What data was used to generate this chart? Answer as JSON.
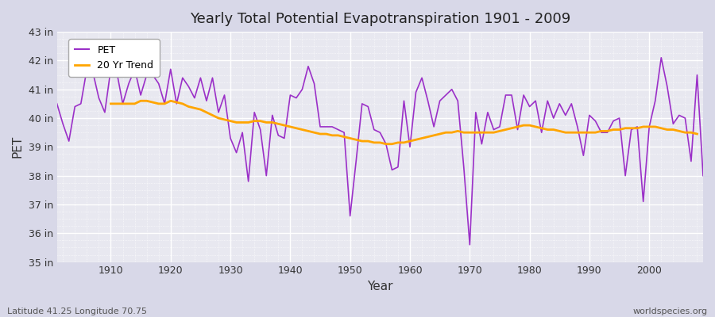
{
  "title": "Yearly Total Potential Evapotranspiration 1901 - 2009",
  "xlabel": "Year",
  "ylabel": "PET",
  "subtitle_left": "Latitude 41.25 Longitude 70.75",
  "subtitle_right": "worldspecies.org",
  "pet_color": "#9B30C8",
  "trend_color": "#FFA500",
  "fig_bg_color": "#D8D8E8",
  "plot_bg_color": "#E8E8F0",
  "ylim": [
    35,
    43
  ],
  "yticks": [
    35,
    36,
    37,
    38,
    39,
    40,
    41,
    42,
    43
  ],
  "years": [
    1901,
    1902,
    1903,
    1904,
    1905,
    1906,
    1907,
    1908,
    1909,
    1910,
    1911,
    1912,
    1913,
    1914,
    1915,
    1916,
    1917,
    1918,
    1919,
    1920,
    1921,
    1922,
    1923,
    1924,
    1925,
    1926,
    1927,
    1928,
    1929,
    1930,
    1931,
    1932,
    1933,
    1934,
    1935,
    1936,
    1937,
    1938,
    1939,
    1940,
    1941,
    1942,
    1943,
    1944,
    1945,
    1946,
    1947,
    1948,
    1949,
    1950,
    1951,
    1952,
    1953,
    1954,
    1955,
    1956,
    1957,
    1958,
    1959,
    1960,
    1961,
    1962,
    1963,
    1964,
    1965,
    1966,
    1967,
    1968,
    1969,
    1970,
    1971,
    1972,
    1973,
    1974,
    1975,
    1976,
    1977,
    1978,
    1979,
    1980,
    1981,
    1982,
    1983,
    1984,
    1985,
    1986,
    1987,
    1988,
    1989,
    1990,
    1991,
    1992,
    1993,
    1994,
    1995,
    1996,
    1997,
    1998,
    1999,
    2000,
    2001,
    2002,
    2003,
    2004,
    2005,
    2006,
    2007,
    2008,
    2009
  ],
  "pet": [
    40.5,
    39.8,
    39.2,
    40.4,
    40.5,
    41.7,
    41.6,
    40.7,
    40.2,
    41.7,
    41.6,
    40.5,
    41.2,
    41.7,
    40.8,
    41.5,
    41.5,
    41.2,
    40.5,
    41.7,
    40.5,
    41.4,
    41.1,
    40.7,
    41.4,
    40.6,
    41.4,
    40.2,
    40.8,
    39.3,
    38.8,
    39.5,
    37.8,
    40.2,
    39.6,
    38.0,
    40.1,
    39.4,
    39.3,
    40.8,
    40.7,
    41.0,
    41.8,
    41.2,
    39.7,
    39.7,
    39.7,
    39.6,
    39.5,
    36.6,
    38.5,
    40.5,
    40.4,
    39.6,
    39.5,
    39.1,
    38.2,
    38.3,
    40.6,
    39.0,
    40.9,
    41.4,
    40.6,
    39.7,
    40.6,
    40.8,
    41.0,
    40.6,
    38.3,
    35.6,
    40.2,
    39.1,
    40.2,
    39.6,
    39.7,
    40.8,
    40.8,
    39.6,
    40.8,
    40.4,
    40.6,
    39.5,
    40.6,
    40.0,
    40.5,
    40.1,
    40.5,
    39.7,
    38.7,
    40.1,
    39.9,
    39.5,
    39.5,
    39.9,
    40.0,
    38.0,
    39.6,
    39.7,
    37.1,
    39.7,
    40.6,
    42.1,
    41.1,
    39.8,
    40.1,
    40.0,
    38.5,
    41.5,
    38.0
  ],
  "trend": [
    null,
    null,
    null,
    null,
    null,
    null,
    null,
    null,
    null,
    40.5,
    40.5,
    40.5,
    40.5,
    40.5,
    40.6,
    40.6,
    40.55,
    40.5,
    40.5,
    40.6,
    40.55,
    40.5,
    40.4,
    40.35,
    40.3,
    40.2,
    40.1,
    40.0,
    39.95,
    39.9,
    39.85,
    39.85,
    39.85,
    39.9,
    39.9,
    39.85,
    39.85,
    39.8,
    39.75,
    39.7,
    39.65,
    39.6,
    39.55,
    39.5,
    39.45,
    39.45,
    39.4,
    39.4,
    39.35,
    39.3,
    39.25,
    39.2,
    39.2,
    39.15,
    39.15,
    39.1,
    39.1,
    39.15,
    39.15,
    39.2,
    39.25,
    39.3,
    39.35,
    39.4,
    39.45,
    39.5,
    39.5,
    39.55,
    39.5,
    39.5,
    39.5,
    39.5,
    39.5,
    39.5,
    39.55,
    39.6,
    39.65,
    39.7,
    39.75,
    39.75,
    39.7,
    39.65,
    39.6,
    39.6,
    39.55,
    39.5,
    39.5,
    39.5,
    39.5,
    39.5,
    39.5,
    39.55,
    39.55,
    39.6,
    39.6,
    39.65,
    39.65,
    39.65,
    39.7,
    39.7,
    39.7,
    39.65,
    39.6,
    39.6,
    39.55,
    39.5,
    39.5,
    39.45
  ]
}
